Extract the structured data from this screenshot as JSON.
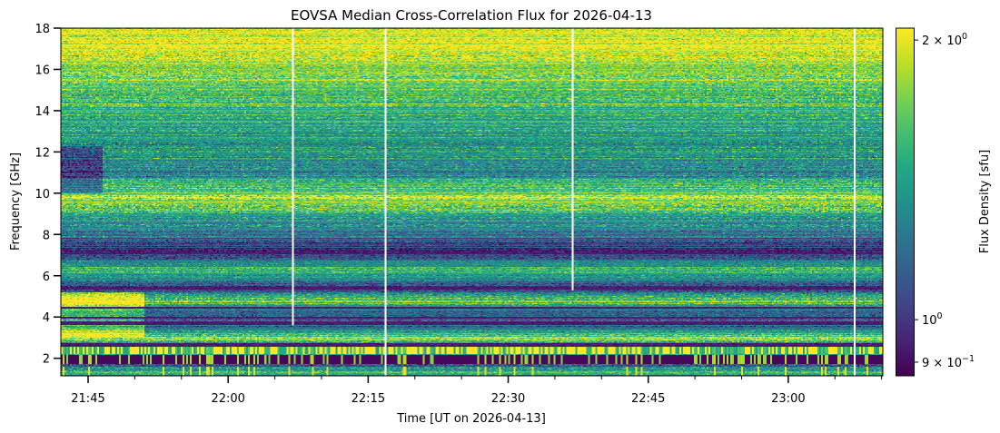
{
  "chart_data": {
    "type": "heatmap",
    "title": "EOVSA Median Cross-Correlation Flux for 2026-04-13",
    "xlabel": "Time [UT on 2026-04-13]",
    "ylabel": "Frequency [GHz]",
    "xlim": [
      "21:42",
      "23:10"
    ],
    "ylim": [
      1.15,
      18
    ],
    "xticks": [
      "21:45",
      "22:00",
      "22:15",
      "22:30",
      "22:45",
      "23:00"
    ],
    "x_minor_tick_interval_min": 5,
    "yticks": [
      "2",
      "4",
      "6",
      "8",
      "10",
      "12",
      "14",
      "16",
      "18"
    ],
    "colormap": "viridis",
    "colorbar": {
      "label": "Flux Density [sfu]",
      "scale": "log",
      "range": [
        0.87,
        2.06
      ],
      "ticks": [
        {
          "value": 2,
          "mant": "2 × 10",
          "exp": "0"
        },
        {
          "value": 1,
          "mant": "10",
          "exp": "0"
        },
        {
          "value": 0.9,
          "mant": "9 × 10",
          "exp": "−1"
        }
      ]
    },
    "data_gaps": [
      {
        "time": "22:06:45",
        "fmin": 3.6,
        "fmax": 18
      },
      {
        "time": "22:16:50",
        "fmin": 1.15,
        "fmax": 18
      },
      {
        "time": "22:36:50",
        "fmin": 5.3,
        "fmax": 18
      },
      {
        "time": "23:07:00",
        "fmin": 1.15,
        "fmax": 18
      }
    ],
    "median_profile": {
      "frequency_ghz": [
        1.4,
        1.9,
        2.3,
        2.6,
        2.9,
        3.5,
        4.2,
        4.8,
        5.4,
        6.2,
        7.1,
        8.5,
        9.8,
        11,
        12.5,
        14,
        15.5,
        17
      ],
      "flux_sfu": [
        1.45,
        0.88,
        1.6,
        0.9,
        1.9,
        1.2,
        1.1,
        1.7,
        0.95,
        1.6,
        0.95,
        1.35,
        1.8,
        1.3,
        1.35,
        1.5,
        1.7,
        1.95
      ]
    }
  }
}
